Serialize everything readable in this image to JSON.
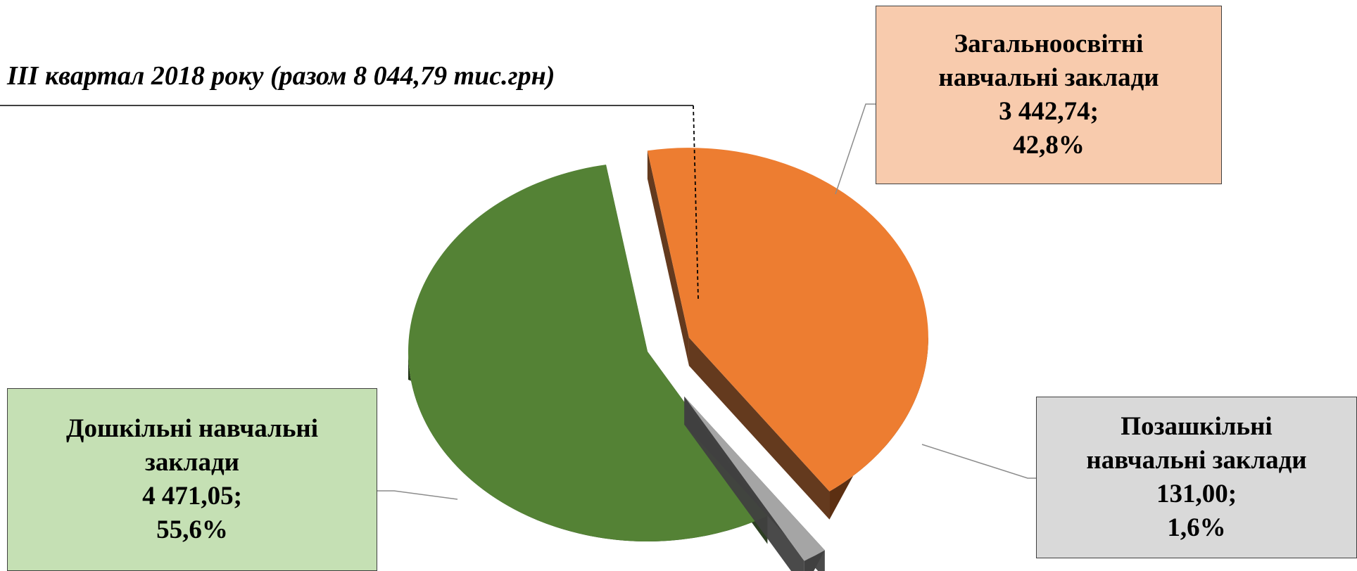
{
  "chart_data": {
    "type": "pie",
    "title": "ІІІ квартал 2018 року (разом 8 044,79 тис.грн)",
    "series": [
      {
        "key": "school",
        "name_lines": [
          "Загальноосвітні",
          "навчальні заклади"
        ],
        "value": 3442.74,
        "value_label": "3 442,74;",
        "percent": 42.8,
        "percent_label": "42,8%",
        "color": "#ed7d31",
        "side_color": "#5c2f12"
      },
      {
        "key": "extra",
        "name_lines": [
          "Позашкільні",
          "навчальні заклади"
        ],
        "value": 131.0,
        "value_label": "131,00;",
        "percent": 1.6,
        "percent_label": "1,6%",
        "color": "#a5a5a5",
        "side_color": "#404040"
      },
      {
        "key": "preschool",
        "name_lines": [
          "Дошкільні навчальні",
          "заклади"
        ],
        "value": 4471.05,
        "value_label": "4 471,05;",
        "percent": 55.6,
        "percent_label": "55,6%",
        "color": "#548235",
        "side_color": "#223517"
      }
    ]
  }
}
